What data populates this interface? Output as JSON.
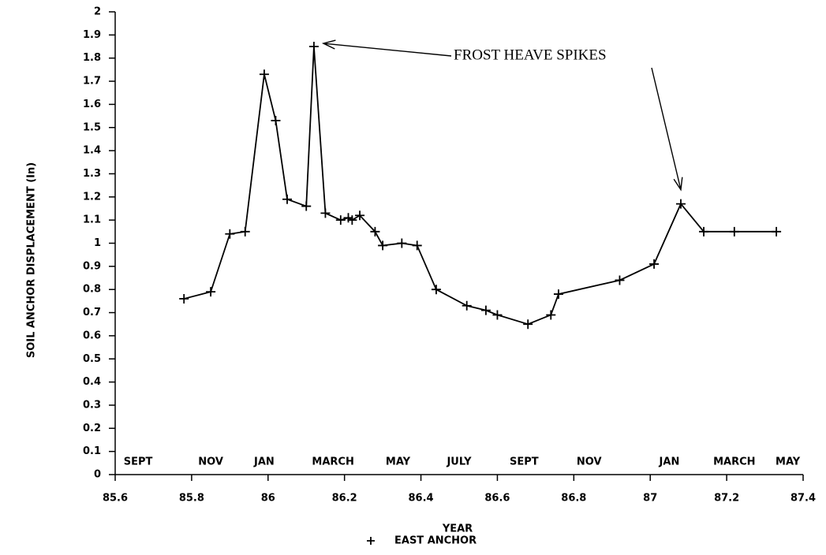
{
  "chart_data": {
    "type": "line",
    "xlabel": "YEAR",
    "ylabel": "SOIL ANCHOR DISPLACEMENT (In)",
    "annotation": "FROST HEAVE SPIKES",
    "legend": "bottom",
    "x": [
      85.78,
      85.85,
      85.9,
      85.94,
      85.99,
      86.02,
      86.05,
      86.1,
      86.12,
      86.15,
      86.19,
      86.21,
      86.22,
      86.24,
      86.28,
      86.3,
      86.35,
      86.39,
      86.44,
      86.52,
      86.57,
      86.6,
      86.68,
      86.74,
      86.76,
      86.92,
      87.01,
      87.08,
      87.14,
      87.22,
      87.33
    ],
    "series": [
      {
        "name": "EAST ANCHOR",
        "color": "#000000",
        "marker": "+",
        "values": [
          0.76,
          0.79,
          1.04,
          1.05,
          1.73,
          1.53,
          1.19,
          1.16,
          1.85,
          1.13,
          1.1,
          1.11,
          1.1,
          1.12,
          1.05,
          0.99,
          1.0,
          0.99,
          0.8,
          0.73,
          0.71,
          0.69,
          0.65,
          0.69,
          0.78,
          0.84,
          0.91,
          1.17,
          1.05,
          1.05,
          1.05
        ]
      }
    ],
    "month_labels": [
      {
        "label": "SEPT",
        "x": 85.66
      },
      {
        "label": "NOV",
        "x": 85.85
      },
      {
        "label": "JAN",
        "x": 85.99
      },
      {
        "label": "MARCH",
        "x": 86.17
      },
      {
        "label": "MAY",
        "x": 86.34
      },
      {
        "label": "JULY",
        "x": 86.5
      },
      {
        "label": "SEPT",
        "x": 86.67
      },
      {
        "label": "NOV",
        "x": 86.84
      },
      {
        "label": "JAN",
        "x": 87.05
      },
      {
        "label": "MARCH",
        "x": 87.22
      },
      {
        "label": "MAY",
        "x": 87.36
      }
    ],
    "xlim": [
      85.6,
      87.4
    ],
    "xticks": [
      85.6,
      85.8,
      86,
      86.2,
      86.4,
      86.6,
      86.8,
      87,
      87.2,
      87.4
    ],
    "ylim": [
      0,
      2
    ],
    "yticks": [
      0,
      0.1,
      0.2,
      0.3,
      0.4,
      0.5,
      0.6,
      0.7,
      0.8,
      0.9,
      1,
      1.1,
      1.2,
      1.3,
      1.4,
      1.5,
      1.6,
      1.7,
      1.8,
      1.9,
      2
    ],
    "grid": false
  }
}
